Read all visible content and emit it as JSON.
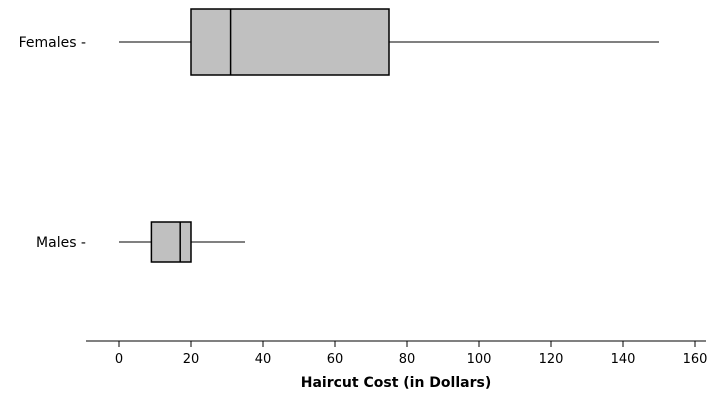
{
  "chart_data": {
    "type": "boxplot",
    "orientation": "horizontal",
    "title": "",
    "xlabel": "Haircut Cost (in Dollars)",
    "ylabel": "",
    "xlim": [
      -9,
      163
    ],
    "x_ticks": [
      0,
      20,
      40,
      60,
      80,
      100,
      120,
      140,
      160
    ],
    "x_tick_labels": [
      "0",
      "20",
      "40",
      "60",
      "80",
      "100",
      "120",
      "140",
      "160"
    ],
    "grid": false,
    "legend": "none",
    "categories": [
      "Females -",
      "Males -"
    ],
    "series": [
      {
        "category": "Females -",
        "min": 0,
        "q1": 20,
        "median": 31,
        "q3": 75,
        "max": 150
      },
      {
        "category": "Males -",
        "min": 0,
        "q1": 9,
        "median": 17,
        "q3": 20,
        "max": 35
      }
    ],
    "colors": {
      "box_fill": "#c0c0c0",
      "stroke": "#000000",
      "background": "#ffffff"
    }
  }
}
